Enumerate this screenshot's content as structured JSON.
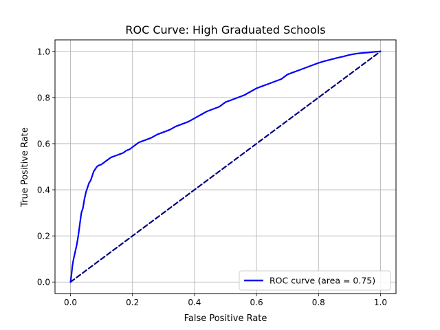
{
  "chart_data": {
    "type": "line",
    "title": "ROC Curve: High Graduated Schools",
    "xlabel": "False Positive Rate",
    "ylabel": "True Positive Rate",
    "xlim": [
      -0.05,
      1.05
    ],
    "ylim": [
      -0.05,
      1.05
    ],
    "xticks": [
      "0.0",
      "0.2",
      "0.4",
      "0.6",
      "0.8",
      "1.0"
    ],
    "yticks": [
      "0.0",
      "0.2",
      "0.4",
      "0.6",
      "0.8",
      "1.0"
    ],
    "grid": true,
    "legend_position": "lower-right",
    "series": [
      {
        "name": "ROC curve (area = 0.75)",
        "color": "#0000ff",
        "style": "solid",
        "x": [
          0.0,
          0.003,
          0.006,
          0.01,
          0.015,
          0.02,
          0.025,
          0.03,
          0.035,
          0.04,
          0.045,
          0.05,
          0.055,
          0.06,
          0.065,
          0.07,
          0.075,
          0.08,
          0.085,
          0.09,
          0.1,
          0.11,
          0.12,
          0.13,
          0.14,
          0.15,
          0.16,
          0.17,
          0.18,
          0.19,
          0.2,
          0.22,
          0.24,
          0.26,
          0.28,
          0.3,
          0.32,
          0.34,
          0.36,
          0.38,
          0.4,
          0.42,
          0.44,
          0.46,
          0.48,
          0.5,
          0.52,
          0.54,
          0.56,
          0.58,
          0.6,
          0.62,
          0.64,
          0.66,
          0.68,
          0.7,
          0.72,
          0.74,
          0.76,
          0.78,
          0.8,
          0.82,
          0.84,
          0.86,
          0.88,
          0.9,
          0.92,
          0.94,
          0.96,
          0.98,
          1.0
        ],
        "y": [
          0.0,
          0.03,
          0.07,
          0.1,
          0.13,
          0.16,
          0.2,
          0.25,
          0.3,
          0.32,
          0.36,
          0.39,
          0.41,
          0.43,
          0.44,
          0.46,
          0.48,
          0.49,
          0.5,
          0.505,
          0.51,
          0.52,
          0.53,
          0.54,
          0.545,
          0.55,
          0.555,
          0.56,
          0.57,
          0.575,
          0.585,
          0.605,
          0.615,
          0.625,
          0.64,
          0.65,
          0.66,
          0.675,
          0.685,
          0.695,
          0.71,
          0.725,
          0.74,
          0.75,
          0.76,
          0.78,
          0.79,
          0.8,
          0.81,
          0.825,
          0.84,
          0.85,
          0.86,
          0.87,
          0.88,
          0.9,
          0.91,
          0.92,
          0.93,
          0.94,
          0.95,
          0.958,
          0.965,
          0.972,
          0.978,
          0.985,
          0.99,
          0.993,
          0.995,
          0.998,
          1.0
        ]
      },
      {
        "color": "#000080",
        "style": "dashed",
        "x": [
          0.0,
          1.0
        ],
        "y": [
          0.0,
          1.0
        ]
      }
    ]
  }
}
